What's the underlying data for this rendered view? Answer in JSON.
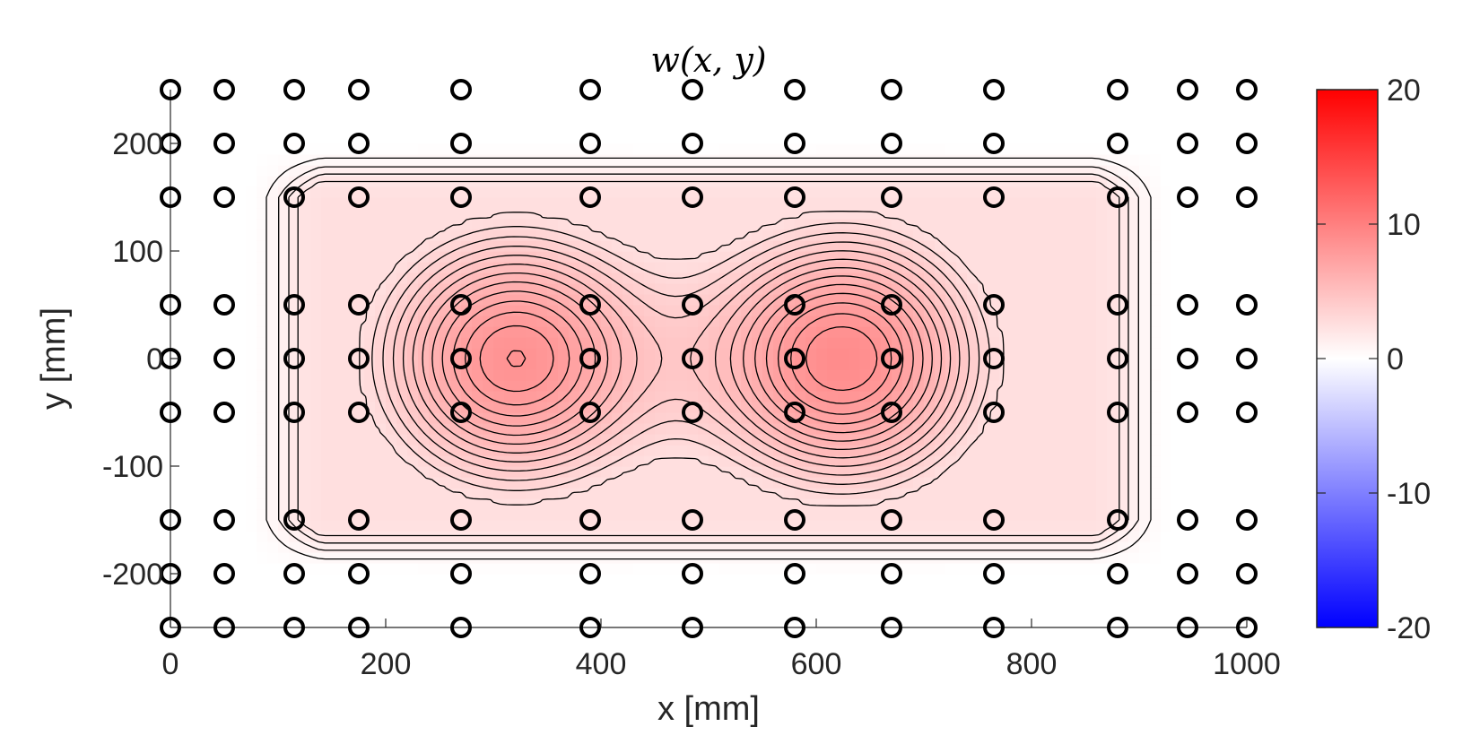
{
  "chart_data": {
    "type": "contour",
    "title": "w(x, y)",
    "xlabel": "x [mm]",
    "ylabel": "y [mm]",
    "xlim": [
      0,
      1000
    ],
    "ylim": [
      -250,
      250
    ],
    "xticks": [
      0,
      200,
      400,
      600,
      800,
      1000
    ],
    "yticks": [
      -200,
      -100,
      0,
      100,
      200
    ],
    "colorbar": {
      "range": [
        -20,
        20
      ],
      "ticks": [
        20,
        10,
        0,
        -10,
        -20
      ],
      "colormap": "blue-white-red",
      "colors": {
        "low": "#0000ff",
        "mid": "#ffffff",
        "high": "#ff0000"
      }
    },
    "grid": false,
    "measurement_points": {
      "marker": "open-circle",
      "x": [
        0,
        50,
        115,
        175,
        270,
        390,
        485,
        580,
        670,
        765,
        880,
        945,
        1000
      ],
      "y": [
        250,
        200,
        150,
        50,
        0,
        -50,
        -150,
        -200,
        -250
      ]
    },
    "surface": {
      "description_of_field": "two positive bulges of deflection",
      "peaks": [
        {
          "x": 320,
          "y": 0,
          "value": 8.5
        },
        {
          "x": 625,
          "y": 0,
          "value": 9
        }
      ],
      "center_valley": {
        "x": 485,
        "y": 0,
        "value": 4.5
      },
      "support_region": {
        "x": [
          70,
          930
        ],
        "y": [
          -200,
          200
        ]
      }
    },
    "contour_levels": [
      0.5,
      1,
      1.5,
      2,
      2.5,
      3,
      3.5,
      4,
      4.5,
      5,
      5.5,
      6,
      6.5,
      7,
      7.5,
      8,
      8.5
    ]
  }
}
